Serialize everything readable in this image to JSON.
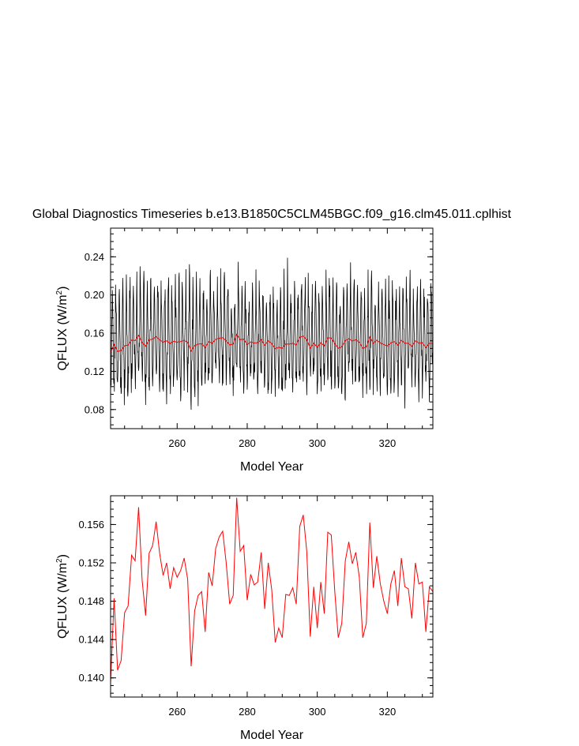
{
  "chart_data": [
    {
      "type": "line",
      "title": "Global Diagnostics Timeseries b.e13.B1850C5CLM45BGC.f09_g16.clm45.011.cplhist",
      "xlabel": "Model Year",
      "ylabel_main": "QFLUX (W/m",
      "ylabel_sup": "2",
      "ylabel_close": ")",
      "xlim": [
        241.0,
        333.0
      ],
      "ylim": [
        0.06,
        0.27
      ],
      "xticks": [
        260,
        280,
        300,
        320
      ],
      "xtick_labels": [
        "260",
        "280",
        "300",
        "320"
      ],
      "yticks": [
        0.08,
        0.12,
        0.16,
        0.2,
        0.24
      ],
      "ytick_labels": [
        "0.08",
        "0.12",
        "0.16",
        "0.20",
        "0.24"
      ],
      "grid": false,
      "series": [
        {
          "color": "#000000",
          "resolution": "monthly",
          "note_values": "monthly values oscillate between roughly 0.09-0.12 (winter) and 0.17-0.24 (summer) around the annual mean"
        },
        {
          "color": "#ff0000",
          "resolution": "annual",
          "values_ref": "annual_mean"
        }
      ]
    },
    {
      "type": "line",
      "xlabel": "Model Year",
      "ylabel_main": "QFLUX (W/m",
      "ylabel_sup": "2",
      "ylabel_close": ")",
      "xlim": [
        241.0,
        333.0
      ],
      "ylim": [
        0.138,
        0.159
      ],
      "xticks": [
        260,
        280,
        300,
        320
      ],
      "xtick_labels": [
        "260",
        "280",
        "300",
        "320"
      ],
      "yticks": [
        0.14,
        0.144,
        0.148,
        0.152,
        0.156
      ],
      "ytick_labels": [
        "0.140",
        "0.144",
        "0.148",
        "0.152",
        "0.156"
      ],
      "grid": false,
      "series": [
        {
          "color": "#ff0000",
          "values_ref": "annual_mean"
        }
      ]
    }
  ],
  "annual_mean": {
    "x": [
      241,
      242,
      243,
      244,
      245,
      246,
      247,
      248,
      249,
      250,
      251,
      252,
      253,
      254,
      255,
      256,
      257,
      258,
      259,
      260,
      261,
      262,
      263,
      264,
      265,
      266,
      267,
      268,
      269,
      270,
      271,
      272,
      273,
      274,
      275,
      276,
      277,
      278,
      279,
      280,
      281,
      282,
      283,
      284,
      285,
      286,
      287,
      288,
      289,
      290,
      291,
      292,
      293,
      294,
      295,
      296,
      297,
      298,
      299,
      300,
      301,
      302,
      303,
      304,
      305,
      306,
      307,
      308,
      309,
      310,
      311,
      312,
      313,
      314,
      315,
      316,
      317,
      318,
      319,
      320,
      321,
      322,
      323,
      324,
      325,
      326,
      327,
      328,
      329,
      330,
      331,
      332,
      333
    ],
    "y": [
      0.1395,
      0.1483,
      0.1408,
      0.1418,
      0.1468,
      0.1475,
      0.1528,
      0.1522,
      0.1578,
      0.1502,
      0.1465,
      0.153,
      0.1538,
      0.1563,
      0.153,
      0.1507,
      0.152,
      0.1493,
      0.1515,
      0.1505,
      0.1512,
      0.1525,
      0.1503,
      0.1412,
      0.147,
      0.1486,
      0.149,
      0.1448,
      0.151,
      0.1496,
      0.1535,
      0.1547,
      0.1553,
      0.152,
      0.1477,
      0.1486,
      0.1588,
      0.1532,
      0.1538,
      0.1481,
      0.1508,
      0.1497,
      0.15,
      0.1531,
      0.1472,
      0.152,
      0.1492,
      0.1437,
      0.1452,
      0.1442,
      0.1487,
      0.1486,
      0.1494,
      0.1477,
      0.1558,
      0.157,
      0.1532,
      0.1443,
      0.1495,
      0.1452,
      0.15,
      0.1467,
      0.1552,
      0.1549,
      0.149,
      0.1442,
      0.1457,
      0.1522,
      0.1542,
      0.1519,
      0.1531,
      0.1505,
      0.1442,
      0.1457,
      0.1562,
      0.1494,
      0.1527,
      0.1498,
      0.148,
      0.1467,
      0.1498,
      0.1512,
      0.1475,
      0.1525,
      0.1495,
      0.1493,
      0.1462,
      0.152,
      0.1498,
      0.15,
      0.1448,
      0.1495,
      0.149
    ]
  }
}
